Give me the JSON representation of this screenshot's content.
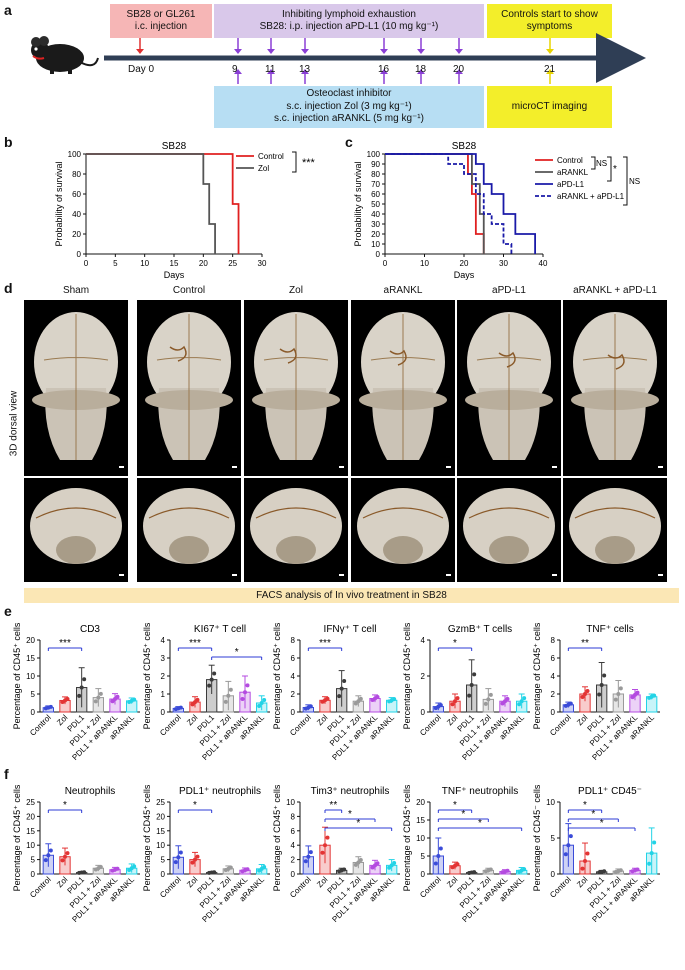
{
  "panel_letters": [
    "a",
    "b",
    "c",
    "d",
    "e",
    "f"
  ],
  "timeline": {
    "box_injection": [
      "SB28 or GL261",
      "i.c. injection"
    ],
    "box_lymphoid": [
      "Inhibiting lymphoid exhaustion",
      "SB28: i.p. injection aPD-L1 (10 mg kg⁻¹)"
    ],
    "box_controls": [
      "Controls start to show",
      "symptoms"
    ],
    "box_osteoclast": [
      "Osteoclast inhibitor",
      "s.c. injection Zol (3 mg kg⁻¹)",
      "s.c. injection aRANKL (5 mg kg⁻¹)"
    ],
    "box_microct": "microCT imaging",
    "day0": "Day 0",
    "days": [
      "9",
      "11",
      "13",
      "16",
      "18",
      "20"
    ],
    "day_end": "21",
    "colors": {
      "injection": "#f6b6b6",
      "lymphoid": "#d9c8ea",
      "controls": "#f3ee2a",
      "osteoclast": "#b7def3",
      "microct": "#f3ee2a",
      "arrow_purple": "#8a3fd6",
      "arrow_red": "#e03030",
      "arrow_yellow": "#e8d400",
      "timeline": "#2f3e55"
    }
  },
  "chart_data": [
    {
      "id": "b",
      "type": "line",
      "title": "SB28",
      "xlabel": "Days",
      "ylabel": "Probability of survival",
      "xlim": [
        0,
        30
      ],
      "ylim": [
        0,
        100
      ],
      "xticks": [
        "0",
        "5",
        "10",
        "15",
        "20",
        "25",
        "30"
      ],
      "yticks": [
        "0",
        "20",
        "40",
        "60",
        "80",
        "100"
      ],
      "series": [
        {
          "name": "Control",
          "color": "#e02020",
          "dash": false,
          "x": [
            0,
            25,
            25,
            26,
            26
          ],
          "y": [
            100,
            100,
            50,
            50,
            0
          ]
        },
        {
          "name": "Zol",
          "color": "#555555",
          "dash": false,
          "x": [
            0,
            20,
            20,
            21,
            21,
            22,
            22
          ],
          "y": [
            100,
            100,
            70,
            70,
            30,
            30,
            0
          ]
        }
      ],
      "significance": "***"
    },
    {
      "id": "c",
      "type": "line",
      "title": "SB28",
      "xlabel": "Days",
      "ylabel": "Probability of survival",
      "xlim": [
        0,
        40
      ],
      "ylim": [
        0,
        100
      ],
      "xticks": [
        "0",
        "10",
        "20",
        "30",
        "40"
      ],
      "yticks": [
        "0",
        "10",
        "20",
        "30",
        "40",
        "50",
        "60",
        "70",
        "80",
        "90",
        "100"
      ],
      "series": [
        {
          "name": "Control",
          "color": "#e02020",
          "dash": false,
          "x": [
            0,
            21,
            21,
            22,
            22,
            23,
            23,
            25,
            25
          ],
          "y": [
            100,
            100,
            80,
            80,
            60,
            60,
            20,
            20,
            0
          ]
        },
        {
          "name": "aRANKL",
          "color": "#555555",
          "dash": false,
          "x": [
            0,
            22,
            22,
            24,
            24,
            25,
            25
          ],
          "y": [
            100,
            100,
            70,
            70,
            40,
            40,
            0
          ]
        },
        {
          "name": "aPD-L1",
          "color": "#1a1aa8",
          "dash": false,
          "x": [
            0,
            23,
            23,
            25,
            25,
            27,
            27,
            30,
            30,
            33,
            33,
            38,
            38
          ],
          "y": [
            100,
            100,
            90,
            90,
            70,
            70,
            60,
            60,
            40,
            40,
            20,
            20,
            0
          ]
        },
        {
          "name": "aRANKL + aPD-L1",
          "color": "#1a1aa8",
          "dash": true,
          "x": [
            0,
            16,
            16,
            20,
            20,
            23,
            23,
            25,
            25,
            27,
            27,
            30,
            30,
            32,
            32
          ],
          "y": [
            100,
            100,
            90,
            90,
            80,
            80,
            60,
            60,
            40,
            40,
            30,
            30,
            10,
            10,
            0
          ]
        }
      ],
      "comparisons": [
        "NS",
        "*",
        "NS"
      ]
    },
    {
      "id": "e1",
      "type": "bar",
      "title": "CD3",
      "ylabel": "Percentage of CD45⁺ cells",
      "ylim": [
        0,
        20
      ],
      "yticks": [
        "0",
        "5",
        "10",
        "15",
        "20"
      ],
      "categories": [
        "Control",
        "Zol",
        "PDL1",
        "PDL1 + Zol",
        "PDL1 + aRANKL",
        "aRANKL"
      ],
      "values": [
        1.2,
        3.2,
        6.8,
        4.0,
        3.6,
        3.1
      ],
      "errors": [
        0.5,
        1.0,
        5.5,
        2.5,
        1.5,
        0.8
      ],
      "significance": [
        {
          "from": 0,
          "to": 2,
          "label": "***"
        }
      ]
    },
    {
      "id": "e2",
      "type": "bar",
      "title": "KI67⁺ T cell",
      "ylabel": "Percentage of CD45⁺ cells",
      "ylim": [
        0,
        4
      ],
      "yticks": [
        "0",
        "1",
        "2",
        "3",
        "4"
      ],
      "categories": [
        "Control",
        "Zol",
        "PDL1",
        "PDL1 + Zol",
        "PDL1 + aRANKL",
        "aRANKL"
      ],
      "values": [
        0.2,
        0.55,
        1.8,
        0.9,
        1.1,
        0.5
      ],
      "errors": [
        0.1,
        0.3,
        0.8,
        0.8,
        0.9,
        0.4
      ],
      "significance": [
        {
          "from": 0,
          "to": 2,
          "label": "***"
        },
        {
          "from": 2,
          "to": 5,
          "label": "*"
        }
      ]
    },
    {
      "id": "e3",
      "type": "bar",
      "title": "IFNγ⁺ T cell",
      "ylabel": "Percentage of CD45⁺ cells",
      "ylim": [
        0,
        8
      ],
      "yticks": [
        "0",
        "2",
        "4",
        "6",
        "8"
      ],
      "categories": [
        "Control",
        "Zol",
        "PDL1",
        "PDL1 + Zol",
        "PDL1 + aRANKL",
        "aRANKL"
      ],
      "values": [
        0.5,
        1.3,
        2.6,
        1.2,
        1.5,
        1.3
      ],
      "errors": [
        0.3,
        0.4,
        2.0,
        0.6,
        0.4,
        0.3
      ],
      "significance": [
        {
          "from": 0,
          "to": 2,
          "label": "***"
        }
      ]
    },
    {
      "id": "e4",
      "type": "bar",
      "title": "GzmB⁺ T cells",
      "ylabel": "Percentage of CD45⁺ cells",
      "ylim": [
        0,
        4
      ],
      "yticks": [
        "0",
        "2",
        "4"
      ],
      "categories": [
        "Control",
        "Zol",
        "PDL1",
        "PDL1 + Zol",
        "PDL1 + aRANKL",
        "aRANKL"
      ],
      "values": [
        0.3,
        0.6,
        1.5,
        0.7,
        0.6,
        0.6
      ],
      "errors": [
        0.2,
        0.4,
        1.4,
        0.6,
        0.3,
        0.4
      ],
      "significance": [
        {
          "from": 0,
          "to": 2,
          "label": "*"
        }
      ]
    },
    {
      "id": "e5",
      "type": "bar",
      "title": "TNF⁺ cells",
      "ylabel": "Percentage of CD45⁺ cells",
      "ylim": [
        0,
        8
      ],
      "yticks": [
        "0",
        "2",
        "4",
        "6",
        "8"
      ],
      "categories": [
        "Control",
        "Zol",
        "PDL1",
        "PDL1 + Zol",
        "PDL1 + aRANKL",
        "aRANKL"
      ],
      "values": [
        0.8,
        2.0,
        3.0,
        2.0,
        1.9,
        1.7
      ],
      "errors": [
        0.3,
        0.8,
        2.5,
        1.5,
        0.6,
        0.3
      ],
      "significance": [
        {
          "from": 0,
          "to": 2,
          "label": "**"
        }
      ]
    },
    {
      "id": "f1",
      "type": "bar",
      "title": "Neutrophils",
      "ylabel": "Percentage of CD45⁺ cells",
      "ylim": [
        0,
        25
      ],
      "yticks": [
        "0",
        "5",
        "10",
        "15",
        "20",
        "25"
      ],
      "categories": [
        "Control",
        "Zol",
        "PDL1",
        "PDL1 + Zol",
        "PDL1 + aRANKL",
        "aRANKL"
      ],
      "values": [
        6.5,
        6.0,
        0.5,
        2.0,
        1.5,
        2.0
      ],
      "errors": [
        4.0,
        3.0,
        0.3,
        1.0,
        0.8,
        1.5
      ],
      "significance": [
        {
          "from": 0,
          "to": 2,
          "label": "*"
        }
      ]
    },
    {
      "id": "f2",
      "type": "bar",
      "title": "PDL1⁺ neutrophils",
      "ylabel": "Percentage of CD45⁺ cells",
      "ylim": [
        0,
        25
      ],
      "yticks": [
        "0",
        "5",
        "10",
        "15",
        "20",
        "25"
      ],
      "categories": [
        "Control",
        "Zol",
        "PDL1",
        "PDL1 + Zol",
        "PDL1 + aRANKL",
        "aRANKL"
      ],
      "values": [
        5.8,
        5.0,
        0.5,
        1.8,
        1.3,
        1.8
      ],
      "errors": [
        4.0,
        2.5,
        0.3,
        1.0,
        0.8,
        1.5
      ],
      "significance": [
        {
          "from": 0,
          "to": 2,
          "label": "*"
        }
      ]
    },
    {
      "id": "f3",
      "type": "bar",
      "title": "Tim3⁺ neutrophils",
      "ylabel": "Percentage of CD45⁺ cells",
      "ylim": [
        0,
        10
      ],
      "yticks": [
        "0",
        "2",
        "4",
        "6",
        "8",
        "10"
      ],
      "categories": [
        "Control",
        "Zol",
        "PDL1",
        "PDL1 + Zol",
        "PDL1 + aRANKL",
        "aRANKL"
      ],
      "values": [
        2.4,
        4.0,
        0.5,
        1.6,
        1.2,
        1.2
      ],
      "errors": [
        1.5,
        2.5,
        0.3,
        0.8,
        0.7,
        0.8
      ],
      "significance": [
        {
          "from": 1,
          "to": 2,
          "label": "**"
        },
        {
          "from": 1,
          "to": 4,
          "label": "*"
        },
        {
          "from": 1,
          "to": 5,
          "label": "*"
        }
      ]
    },
    {
      "id": "f4",
      "type": "bar",
      "title": "TNF⁺ neutrophils",
      "ylabel": "Percentage of CD45⁺ cells",
      "ylim": [
        0,
        20
      ],
      "yticks": [
        "0",
        "5",
        "10",
        "15",
        "20"
      ],
      "categories": [
        "Control",
        "Zol",
        "PDL1",
        "PDL1 + Zol",
        "PDL1 + aRANKL",
        "aRANKL"
      ],
      "values": [
        5.0,
        2.3,
        0.4,
        1.0,
        0.7,
        1.0
      ],
      "errors": [
        5.0,
        1.0,
        0.3,
        0.6,
        0.5,
        0.8
      ],
      "significance": [
        {
          "from": 0,
          "to": 2,
          "label": "*"
        },
        {
          "from": 0,
          "to": 3,
          "label": "*"
        },
        {
          "from": 0,
          "to": 5,
          "label": "*"
        }
      ]
    },
    {
      "id": "f5",
      "type": "bar",
      "title": "PDL1⁺ CD45⁻",
      "ylabel": "Percentage of CD45⁻ cells",
      "ylim": [
        0,
        10
      ],
      "yticks": [
        "0",
        "5",
        "10"
      ],
      "categories": [
        "Control",
        "Zol",
        "PDL1",
        "PDL1 + Zol",
        "PDL1 + aRANKL",
        "aRANKL"
      ],
      "values": [
        4.0,
        1.8,
        0.3,
        0.4,
        0.5,
        2.9
      ],
      "errors": [
        3.0,
        2.5,
        0.2,
        0.3,
        0.3,
        3.5
      ],
      "significance": [
        {
          "from": 0,
          "to": 2,
          "label": "*"
        },
        {
          "from": 0,
          "to": 3,
          "label": "*"
        },
        {
          "from": 0,
          "to": 4,
          "label": "*"
        }
      ]
    }
  ],
  "bar_colors": [
    "#3a4bd8",
    "#e33434",
    "#3b3b3b",
    "#9a9a9a",
    "#b44be0",
    "#22d3e6"
  ],
  "skulls": {
    "labels": [
      "Sham",
      "Control",
      "Zol",
      "aRANKL",
      "aPD-L1",
      "aRANKL + aPD-L1"
    ],
    "side_label": "3D dorsal view"
  },
  "facs_banner": "FACS analysis of In vivo treatment in SB28"
}
